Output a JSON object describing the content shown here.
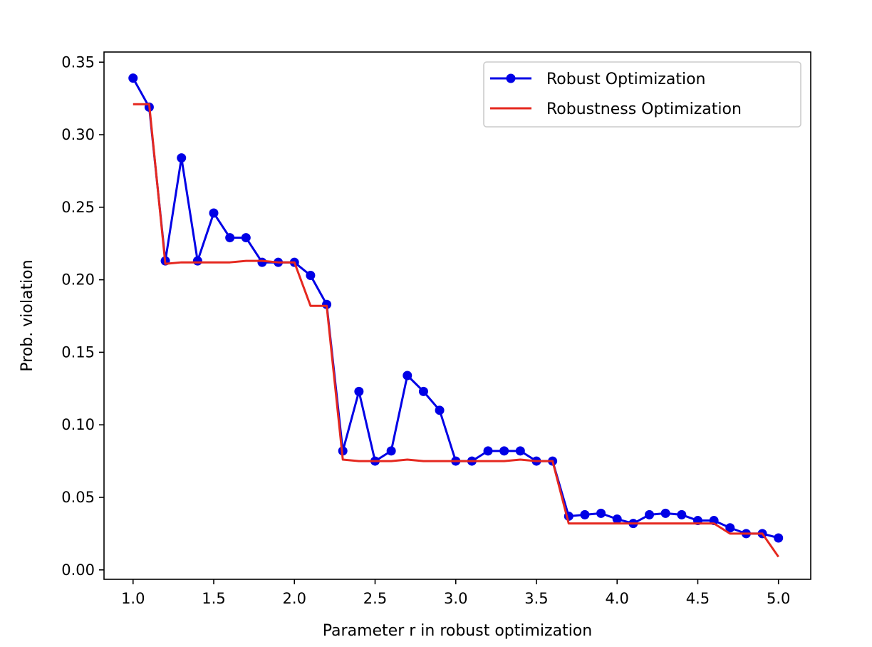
{
  "chart_data": {
    "type": "line",
    "xlabel": "Parameter r in robust optimization",
    "ylabel": "Prob. violation",
    "xlim": [
      0.82,
      5.2
    ],
    "ylim": [
      -0.0065,
      0.357
    ],
    "xticks": [
      "1.0",
      "1.5",
      "2.0",
      "2.5",
      "3.0",
      "3.5",
      "4.0",
      "4.5",
      "5.0"
    ],
    "yticks": [
      "0.00",
      "0.05",
      "0.10",
      "0.15",
      "0.20",
      "0.25",
      "0.30",
      "0.35"
    ],
    "grid": false,
    "legend_position": "top-right",
    "series": [
      {
        "name": "Robust Optimization",
        "color": "#0000e6",
        "marker": "circle",
        "x": [
          1.0,
          1.1,
          1.2,
          1.3,
          1.4,
          1.5,
          1.6,
          1.7,
          1.8,
          1.9,
          2.0,
          2.1,
          2.2,
          2.3,
          2.4,
          2.5,
          2.6,
          2.7,
          2.8,
          2.9,
          3.0,
          3.1,
          3.2,
          3.3,
          3.4,
          3.5,
          3.6,
          3.7,
          3.8,
          3.9,
          4.0,
          4.1,
          4.2,
          4.3,
          4.4,
          4.5,
          4.6,
          4.7,
          4.8,
          4.9,
          5.0
        ],
        "y": [
          0.339,
          0.319,
          0.213,
          0.284,
          0.213,
          0.246,
          0.229,
          0.229,
          0.212,
          0.212,
          0.212,
          0.203,
          0.183,
          0.082,
          0.123,
          0.075,
          0.082,
          0.134,
          0.123,
          0.11,
          0.075,
          0.075,
          0.082,
          0.082,
          0.082,
          0.075,
          0.075,
          0.037,
          0.038,
          0.039,
          0.035,
          0.032,
          0.038,
          0.039,
          0.038,
          0.034,
          0.034,
          0.029,
          0.025,
          0.025,
          0.022
        ]
      },
      {
        "name": "Robustness Optimization",
        "color": "#e5281f",
        "marker": "none",
        "x": [
          1.0,
          1.1,
          1.2,
          1.3,
          1.4,
          1.5,
          1.6,
          1.7,
          1.8,
          1.9,
          2.0,
          2.1,
          2.2,
          2.3,
          2.4,
          2.5,
          2.6,
          2.7,
          2.8,
          2.9,
          3.0,
          3.1,
          3.2,
          3.3,
          3.4,
          3.5,
          3.6,
          3.7,
          3.8,
          3.9,
          4.0,
          4.1,
          4.2,
          4.3,
          4.4,
          4.5,
          4.6,
          4.7,
          4.8,
          4.9,
          5.0
        ],
        "y": [
          0.321,
          0.321,
          0.211,
          0.212,
          0.212,
          0.212,
          0.212,
          0.213,
          0.213,
          0.212,
          0.212,
          0.182,
          0.182,
          0.076,
          0.075,
          0.075,
          0.075,
          0.076,
          0.075,
          0.075,
          0.075,
          0.075,
          0.075,
          0.075,
          0.076,
          0.075,
          0.075,
          0.032,
          0.032,
          0.032,
          0.032,
          0.032,
          0.032,
          0.032,
          0.032,
          0.032,
          0.032,
          0.025,
          0.025,
          0.025,
          0.009
        ]
      }
    ]
  }
}
